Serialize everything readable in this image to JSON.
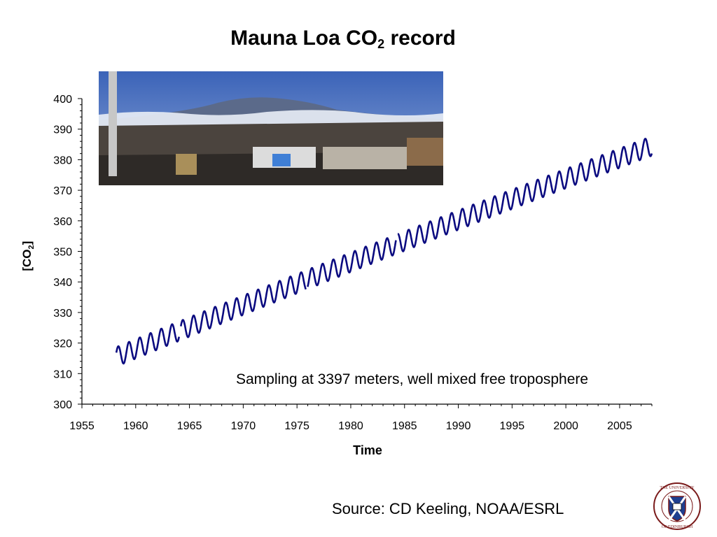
{
  "title": {
    "main": "Mauna Loa CO",
    "sub": "2",
    "tail": " record"
  },
  "annotation": "Sampling at 3397 meters, well mixed free troposphere",
  "source": "Source: CD Keeling, NOAA/ESRL",
  "logo_text": "THE UNIVERSITY OF EDINBURGH",
  "colors": {
    "series": "#0b0b80",
    "axis": "#000000"
  },
  "chart_data": {
    "type": "line",
    "title": "Mauna Loa CO2 record",
    "xlabel": "Time",
    "ylabel": "[CO2]",
    "ylabel_parts": {
      "main": "[CO",
      "sub": "2",
      "tail": "]"
    },
    "xlim": [
      1955,
      2008
    ],
    "ylim": [
      300,
      400
    ],
    "x_ticks": [
      1955,
      1960,
      1965,
      1970,
      1975,
      1980,
      1985,
      1990,
      1995,
      2000,
      2005
    ],
    "y_ticks": [
      300,
      310,
      320,
      330,
      340,
      350,
      360,
      370,
      380,
      390,
      400
    ],
    "grid": false,
    "series": [
      {
        "trend_start": [
          1958.2,
          315.5
        ],
        "trend_end": [
          2008.0,
          384.5
        ],
        "seasonal_amplitude_ppm": 3.2,
        "gaps": [
          1964.1,
          1975.9,
          1984.3
        ],
        "monthly_from": 1958.2,
        "monthly_to": 2008.0
      }
    ]
  }
}
